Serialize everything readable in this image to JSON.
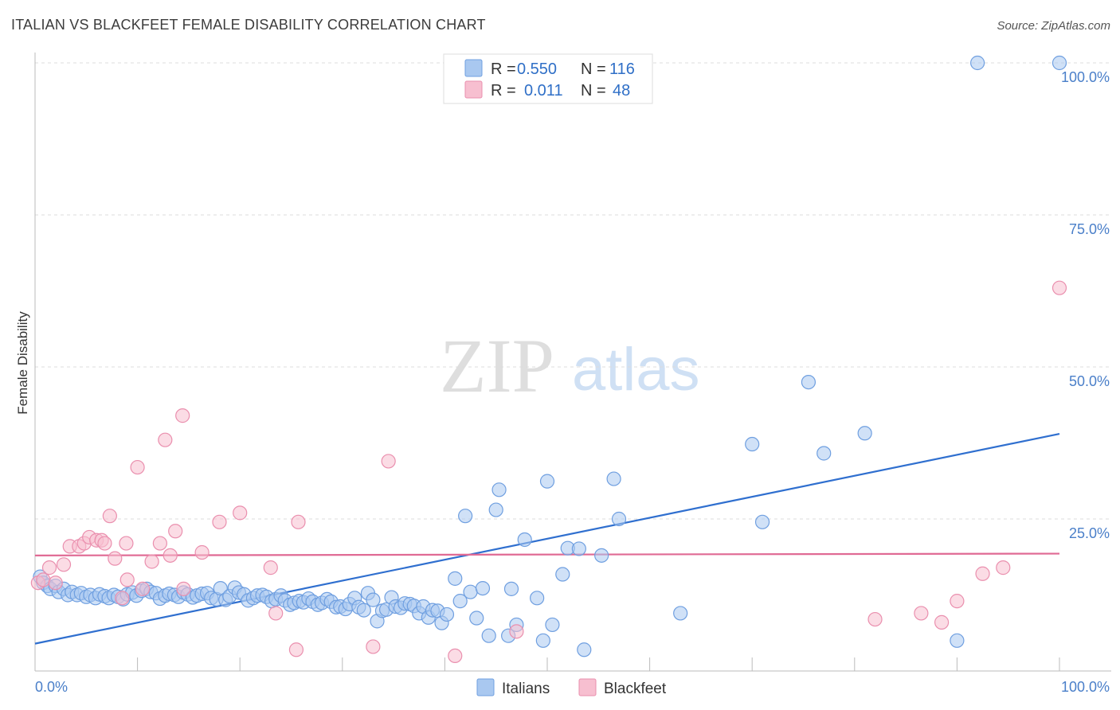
{
  "header": {
    "title": "ITALIAN VS BLACKFEET FEMALE DISABILITY CORRELATION CHART",
    "source": "Source: ZipAtlas.com"
  },
  "watermark": {
    "zip": "ZIP",
    "atlas": "atlas"
  },
  "legend": {
    "rows": [
      {
        "r_label": "R =",
        "r_value": "0.550",
        "n_label": "N =",
        "n_value": "116",
        "color": "#a9c8f0",
        "stroke": "#6f9fe0"
      },
      {
        "r_label": "R =",
        "r_value": "0.011",
        "n_label": "N =",
        "n_value": "48",
        "color": "#f7bfd0",
        "stroke": "#ea8fae"
      }
    ]
  },
  "bottom_legend": [
    {
      "label": "Italians",
      "color": "#a9c8f0",
      "stroke": "#6f9fe0"
    },
    {
      "label": "Blackfeet",
      "color": "#f7bfd0",
      "stroke": "#ea8fae"
    }
  ],
  "chart_data": {
    "type": "scatter",
    "title": "ITALIAN VS BLACKFEET FEMALE DISABILITY CORRELATION CHART",
    "xlabel": "",
    "ylabel": "Female Disability",
    "xlim": [
      0,
      100
    ],
    "ylim": [
      0,
      100
    ],
    "x_tick_labels": [
      "0.0%",
      "100.0%"
    ],
    "y_ticks": [
      25,
      50,
      75,
      100
    ],
    "y_tick_labels": [
      "25.0%",
      "50.0%",
      "75.0%",
      "100.0%"
    ],
    "grid": true,
    "legend_position": "top-center",
    "series": [
      {
        "name": "Italians",
        "color": "#6f9fe0",
        "fill": "#a9c8f0",
        "trend": {
          "x": [
            0,
            100
          ],
          "y": [
            4.5,
            39.0
          ],
          "color": "#2f6fcf"
        },
        "points": [
          [
            0.5,
            15.5
          ],
          [
            0.8,
            14.5
          ],
          [
            1.2,
            14.0
          ],
          [
            1.5,
            13.5
          ],
          [
            2.0,
            14.0
          ],
          [
            2.3,
            13.0
          ],
          [
            2.8,
            13.5
          ],
          [
            3.2,
            12.5
          ],
          [
            3.6,
            13.0
          ],
          [
            4.1,
            12.5
          ],
          [
            4.5,
            12.8
          ],
          [
            5.0,
            12.2
          ],
          [
            5.4,
            12.5
          ],
          [
            5.9,
            12.0
          ],
          [
            6.3,
            12.6
          ],
          [
            6.8,
            12.3
          ],
          [
            7.2,
            12.0
          ],
          [
            7.7,
            12.5
          ],
          [
            8.1,
            12.2
          ],
          [
            8.6,
            11.8
          ],
          [
            9.0,
            12.6
          ],
          [
            9.5,
            12.9
          ],
          [
            9.9,
            12.4
          ],
          [
            10.4,
            13.2
          ],
          [
            10.9,
            13.5
          ],
          [
            11.3,
            13.0
          ],
          [
            11.8,
            12.8
          ],
          [
            12.2,
            11.9
          ],
          [
            12.7,
            12.4
          ],
          [
            13.1,
            12.7
          ],
          [
            13.6,
            12.5
          ],
          [
            14.0,
            12.2
          ],
          [
            14.5,
            12.9
          ],
          [
            14.9,
            12.6
          ],
          [
            15.4,
            12.1
          ],
          [
            15.8,
            12.4
          ],
          [
            16.3,
            12.7
          ],
          [
            16.8,
            12.8
          ],
          [
            17.2,
            12.0
          ],
          [
            17.7,
            11.8
          ],
          [
            18.1,
            13.6
          ],
          [
            18.6,
            11.7
          ],
          [
            19.0,
            12.3
          ],
          [
            19.5,
            13.7
          ],
          [
            19.9,
            12.9
          ],
          [
            20.4,
            12.6
          ],
          [
            20.8,
            11.6
          ],
          [
            21.3,
            12.0
          ],
          [
            21.7,
            12.4
          ],
          [
            22.2,
            12.5
          ],
          [
            22.6,
            12.2
          ],
          [
            23.1,
            11.5
          ],
          [
            23.5,
            11.8
          ],
          [
            24.0,
            12.4
          ],
          [
            24.4,
            11.6
          ],
          [
            24.9,
            10.9
          ],
          [
            25.3,
            11.2
          ],
          [
            25.8,
            11.5
          ],
          [
            26.2,
            11.3
          ],
          [
            26.7,
            11.9
          ],
          [
            27.1,
            11.4
          ],
          [
            27.6,
            10.9
          ],
          [
            28.0,
            11.2
          ],
          [
            28.5,
            11.8
          ],
          [
            28.9,
            11.4
          ],
          [
            29.4,
            10.5
          ],
          [
            29.8,
            10.6
          ],
          [
            30.3,
            10.2
          ],
          [
            30.7,
            11.0
          ],
          [
            31.2,
            12.0
          ],
          [
            31.6,
            10.5
          ],
          [
            32.1,
            10.0
          ],
          [
            32.5,
            12.8
          ],
          [
            33.0,
            11.7
          ],
          [
            33.4,
            8.2
          ],
          [
            33.9,
            9.9
          ],
          [
            34.3,
            10.1
          ],
          [
            34.8,
            12.1
          ],
          [
            35.2,
            10.6
          ],
          [
            35.7,
            10.4
          ],
          [
            36.1,
            11.1
          ],
          [
            36.6,
            11.0
          ],
          [
            37.0,
            10.7
          ],
          [
            37.5,
            9.5
          ],
          [
            37.9,
            10.6
          ],
          [
            38.4,
            8.8
          ],
          [
            38.8,
            10.0
          ],
          [
            39.3,
            9.9
          ],
          [
            39.7,
            7.9
          ],
          [
            40.2,
            9.3
          ],
          [
            41.0,
            15.2
          ],
          [
            41.5,
            11.5
          ],
          [
            42.0,
            25.5
          ],
          [
            42.5,
            13.0
          ],
          [
            43.1,
            8.7
          ],
          [
            43.7,
            13.6
          ],
          [
            44.3,
            5.8
          ],
          [
            45.0,
            26.5
          ],
          [
            45.3,
            29.8
          ],
          [
            46.2,
            5.8
          ],
          [
            46.5,
            13.5
          ],
          [
            47.0,
            7.6
          ],
          [
            47.8,
            21.6
          ],
          [
            49.0,
            12.0
          ],
          [
            49.6,
            5.0
          ],
          [
            50.0,
            31.2
          ],
          [
            50.5,
            7.6
          ],
          [
            51.5,
            15.9
          ],
          [
            52.0,
            20.2
          ],
          [
            53.1,
            20.1
          ],
          [
            53.6,
            3.5
          ],
          [
            55.3,
            19.0
          ],
          [
            56.5,
            31.6
          ],
          [
            57.0,
            25.0
          ],
          [
            63.0,
            9.5
          ],
          [
            70.0,
            37.3
          ],
          [
            71.0,
            24.5
          ],
          [
            75.5,
            47.5
          ],
          [
            77.0,
            35.8
          ],
          [
            81.0,
            39.1
          ],
          [
            90.0,
            5.0
          ],
          [
            92.0,
            100.0
          ],
          [
            100.0,
            100.0
          ]
        ]
      },
      {
        "name": "Blackfeet",
        "color": "#ea8fae",
        "fill": "#f7bfd0",
        "trend": {
          "x": [
            0,
            100
          ],
          "y": [
            19.0,
            19.3
          ],
          "color": "#e06a94"
        },
        "points": [
          [
            0.3,
            14.5
          ],
          [
            0.8,
            15.0
          ],
          [
            1.4,
            17.0
          ],
          [
            2.0,
            14.5
          ],
          [
            2.8,
            17.5
          ],
          [
            3.4,
            20.5
          ],
          [
            4.3,
            20.5
          ],
          [
            4.8,
            21.0
          ],
          [
            5.3,
            22.0
          ],
          [
            6.0,
            21.5
          ],
          [
            6.5,
            21.5
          ],
          [
            6.8,
            21.0
          ],
          [
            7.3,
            25.5
          ],
          [
            7.8,
            18.5
          ],
          [
            8.5,
            12.0
          ],
          [
            8.9,
            21.0
          ],
          [
            9.0,
            15.0
          ],
          [
            10.0,
            33.5
          ],
          [
            10.5,
            13.5
          ],
          [
            11.4,
            18.0
          ],
          [
            12.2,
            21.0
          ],
          [
            12.7,
            38.0
          ],
          [
            13.2,
            19.0
          ],
          [
            13.7,
            23.0
          ],
          [
            14.4,
            42.0
          ],
          [
            14.5,
            13.5
          ],
          [
            16.3,
            19.5
          ],
          [
            18.0,
            24.5
          ],
          [
            20.0,
            26.0
          ],
          [
            23.0,
            17.0
          ],
          [
            23.5,
            9.5
          ],
          [
            25.5,
            3.5
          ],
          [
            25.7,
            24.5
          ],
          [
            33.0,
            4.0
          ],
          [
            34.5,
            34.5
          ],
          [
            41.0,
            2.5
          ],
          [
            47.0,
            6.5
          ],
          [
            82.0,
            8.5
          ],
          [
            86.5,
            9.5
          ],
          [
            88.5,
            8.0
          ],
          [
            90.0,
            11.5
          ],
          [
            92.5,
            16.0
          ],
          [
            94.5,
            17.0
          ],
          [
            100.0,
            63.0
          ]
        ]
      }
    ]
  }
}
